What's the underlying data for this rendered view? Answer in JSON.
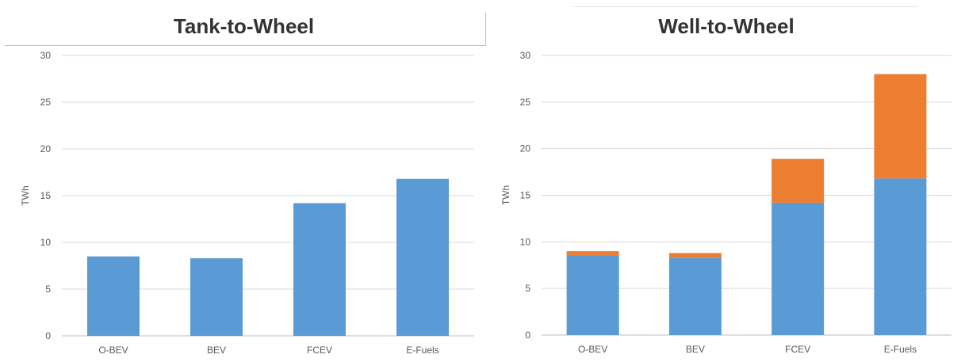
{
  "chart_data": [
    {
      "type": "bar",
      "title": "Tank-to-Wheel",
      "xlabel": "",
      "ylabel": "TWh",
      "ylim": [
        0,
        30
      ],
      "yticks": [
        0,
        5,
        10,
        15,
        20,
        25,
        30
      ],
      "grid": true,
      "categories": [
        "O-BEV",
        "BEV",
        "FCEV",
        "E-Fuels"
      ],
      "series": [
        {
          "values": [
            8.5,
            8.3,
            14.2,
            16.8
          ],
          "color": "#5b9bd5"
        }
      ]
    },
    {
      "type": "bar",
      "stacked": true,
      "title": "Well-to-Wheel",
      "xlabel": "",
      "ylabel": "TWh",
      "ylim": [
        0,
        30
      ],
      "yticks": [
        0,
        5,
        10,
        15,
        20,
        25,
        30
      ],
      "grid": true,
      "categories": [
        "O-BEV",
        "BEV",
        "FCEV",
        "E-Fuels"
      ],
      "series": [
        {
          "values": [
            8.5,
            8.3,
            14.2,
            16.8
          ],
          "color": "#5b9bd5"
        },
        {
          "values": [
            0.5,
            0.5,
            4.7,
            11.2
          ],
          "color": "#ed7d31"
        }
      ]
    }
  ]
}
